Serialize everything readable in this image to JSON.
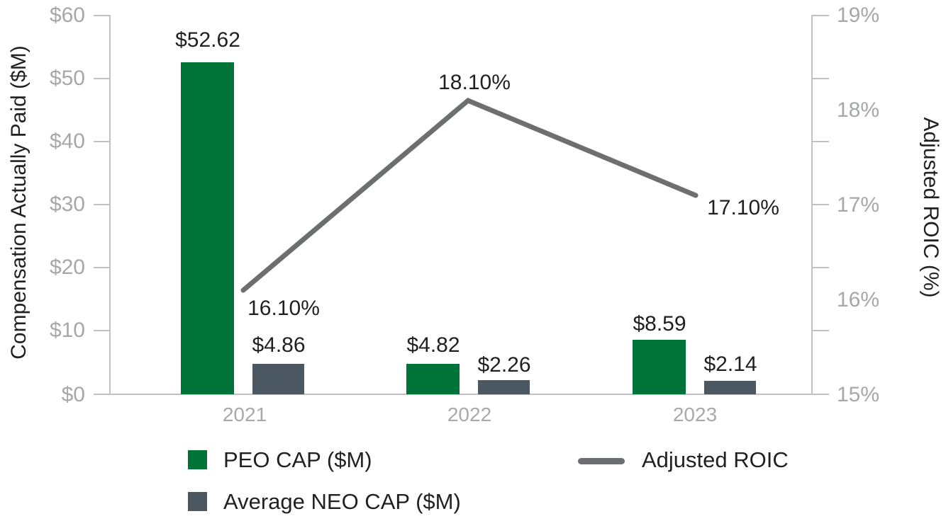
{
  "chart_data": {
    "type": "combo-bar-line",
    "categories": [
      "2021",
      "2022",
      "2023"
    ],
    "series": [
      {
        "name": "PEO CAP ($M)",
        "type": "bar",
        "axis": "left",
        "color": "#007338",
        "values": [
          52.62,
          4.82,
          8.59
        ],
        "value_labels": [
          "$52.62",
          "$4.82",
          "$8.59"
        ]
      },
      {
        "name": "Average NEO CAP ($M)",
        "type": "bar",
        "axis": "left",
        "color": "#4b5862",
        "values": [
          4.86,
          2.26,
          2.14
        ],
        "value_labels": [
          "$4.86",
          "$2.26",
          "$2.14"
        ]
      },
      {
        "name": "Adjusted ROIC",
        "type": "line",
        "axis": "right",
        "color": "#6d6e70",
        "values": [
          16.1,
          18.1,
          17.1
        ],
        "value_labels": [
          "16.10%",
          "18.10%",
          "17.10%"
        ]
      }
    ],
    "left_axis": {
      "title": "Compensation Actually Paid ($M)",
      "min": 0,
      "max": 60,
      "tick_labels": [
        "$60",
        "$50",
        "$40",
        "$30",
        "$20",
        "$10",
        "$0"
      ]
    },
    "right_axis": {
      "title": "Adjusted ROIC (%)",
      "min": 15,
      "max": 19,
      "tick_labels": [
        "19%",
        "18%",
        "17%",
        "16%",
        "15%"
      ]
    },
    "legend_position": "bottom",
    "grid": false,
    "colors": {
      "bar_green": "#007338",
      "bar_slate": "#4b5862",
      "line_gray": "#6d6e70",
      "axis_text": "#a5a7aa",
      "label_text": "#231f20",
      "axis_line": "#bfc1c3"
    }
  }
}
